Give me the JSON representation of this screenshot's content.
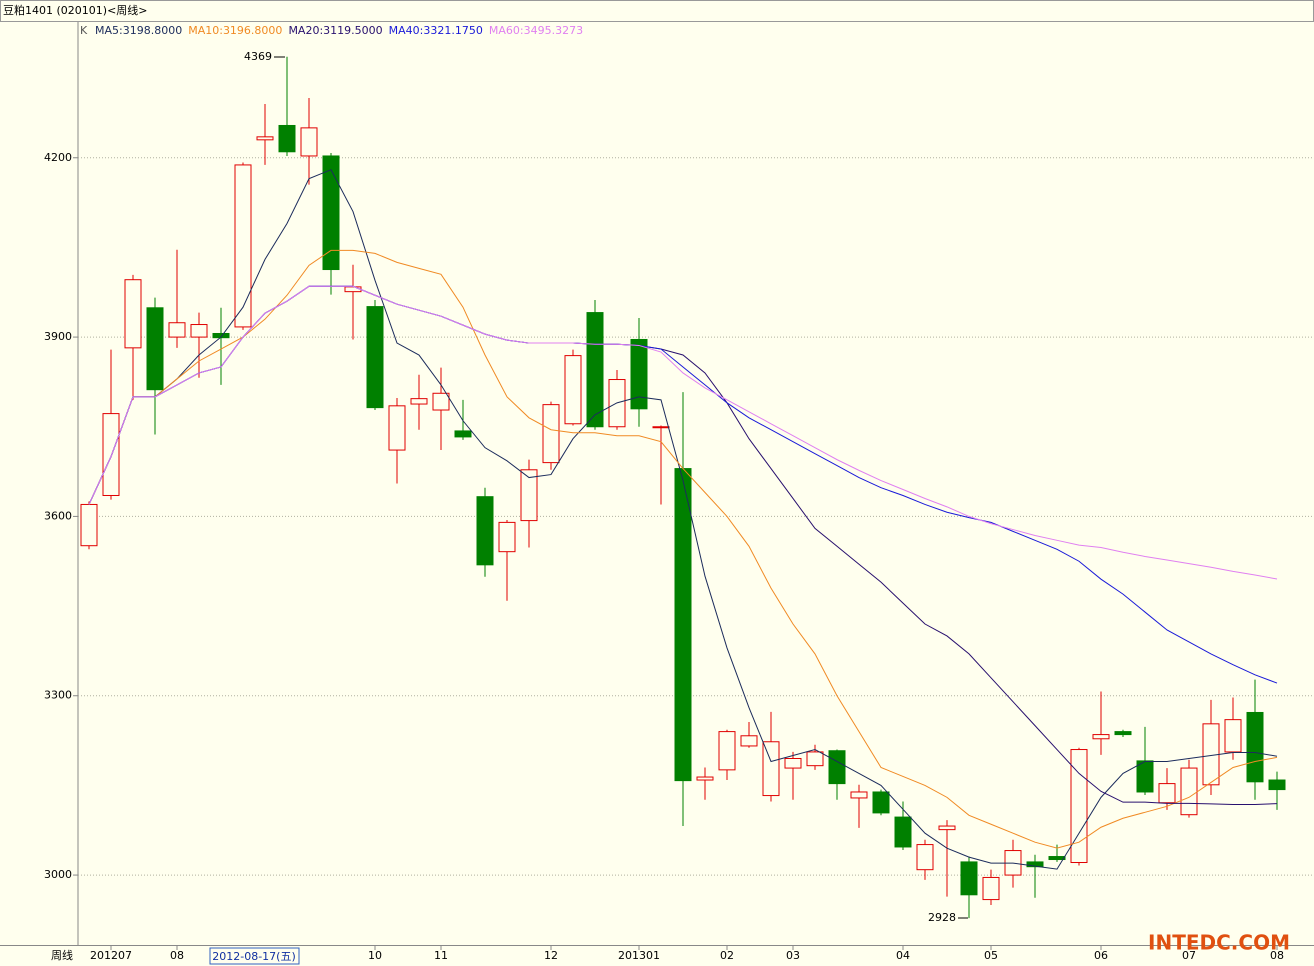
{
  "window_title": "豆粕1401 (020101)<周线>",
  "chart_data": {
    "type": "candlestick",
    "legend_title": "K",
    "x_axis_label": "周线",
    "cursor_label": "2012-08-17(五)",
    "watermark": "INTEDC.COM",
    "annotations": [
      "4369",
      "2928"
    ],
    "categories": [
      null,
      "201207",
      null,
      null,
      "08",
      null,
      null,
      null,
      null,
      null,
      null,
      null,
      null,
      "10",
      null,
      null,
      "11",
      null,
      null,
      null,
      null,
      "12",
      null,
      null,
      null,
      "201301",
      null,
      null,
      null,
      "02",
      null,
      null,
      "03",
      null,
      null,
      null,
      null,
      "04",
      null,
      null,
      null,
      "05",
      null,
      null,
      null,
      null,
      "06",
      null,
      null,
      null,
      "07",
      null,
      null,
      null,
      "08"
    ],
    "open": [
      3551,
      3635,
      3882,
      3949,
      3900,
      3900,
      3906,
      3917,
      4230,
      4254,
      4203,
      4203,
      3976,
      3951,
      3711,
      3788,
      3778,
      3743,
      3633,
      3541,
      3593,
      3690,
      3755,
      3941,
      3750,
      3896,
      3750,
      3680,
      3159,
      3176,
      3216,
      3133,
      3179,
      3183,
      3208,
      3129,
      3139,
      3097,
      3009,
      3076,
      3022,
      2959,
      3000,
      3022,
      3031,
      3021,
      3228,
      3240,
      3191,
      3121,
      3101,
      3151,
      3206,
      3272,
      3159
    ],
    "high": [
      3625,
      3879,
      4004,
      3966,
      4046,
      3941,
      3949,
      4192,
      4290,
      4369,
      4300,
      4208,
      4021,
      3962,
      3798,
      3837,
      3849,
      3795,
      3648,
      3594,
      3695,
      3792,
      3879,
      3962,
      3845,
      3932,
      3752,
      3808,
      3180,
      3243,
      3256,
      3273,
      3206,
      3218,
      3210,
      3151,
      3143,
      3123,
      3059,
      3092,
      3031,
      3009,
      3059,
      3034,
      3051,
      3213,
      3307,
      3243,
      3248,
      3179,
      3193,
      3293,
      3297,
      3327,
      3173
    ],
    "low": [
      3545,
      3628,
      3795,
      3737,
      3882,
      3832,
      3820,
      3912,
      4188,
      4203,
      4155,
      3971,
      3896,
      3778,
      3655,
      3745,
      3711,
      3728,
      3499,
      3459,
      3548,
      3678,
      3752,
      3745,
      3745,
      3750,
      3620,
      3082,
      3126,
      3159,
      3213,
      3123,
      3126,
      3176,
      3126,
      3079,
      3100,
      3042,
      2992,
      2964,
      2928,
      2950,
      2979,
      2962,
      3022,
      3016,
      3201,
      3231,
      3134,
      3109,
      3096,
      3134,
      3193,
      3126,
      3109
    ],
    "close": [
      3620,
      3772,
      3996,
      3812,
      3924,
      3921,
      3899,
      4188,
      4235,
      4210,
      4250,
      4013,
      3984,
      3782,
      3785,
      3797,
      3806,
      3733,
      3519,
      3590,
      3678,
      3787,
      3869,
      3750,
      3829,
      3780,
      3750,
      3158,
      3164,
      3240,
      3233,
      3223,
      3195,
      3206,
      3153,
      3139,
      3104,
      3047,
      3051,
      3082,
      2967,
      2996,
      3041,
      3014,
      3026,
      3210,
      3235,
      3235,
      3139,
      3153,
      3179,
      3253,
      3260,
      3156,
      3143
    ],
    "up_color": "#e00000",
    "down_color": "#008000",
    "series": [
      {
        "name": "MA5:3198.8000",
        "color": "#1c2c5c",
        "values": [
          3620,
          3700,
          3800,
          3800,
          3830,
          3870,
          3900,
          3950,
          4030,
          4090,
          4165,
          4180,
          4110,
          3995,
          3890,
          3870,
          3820,
          3760,
          3715,
          3693,
          3665,
          3670,
          3730,
          3770,
          3790,
          3800,
          3795,
          3660,
          3500,
          3380,
          3280,
          3190,
          3200,
          3210,
          3190,
          3170,
          3150,
          3110,
          3070,
          3045,
          3030,
          3020,
          3020,
          3015,
          3010,
          3070,
          3130,
          3170,
          3190,
          3190,
          3195,
          3200,
          3205,
          3205,
          3198.8
        ]
      },
      {
        "name": "MA10:3196.8000",
        "color": "#f08a24",
        "values": [
          3620,
          3700,
          3800,
          3800,
          3830,
          3860,
          3880,
          3900,
          3930,
          3970,
          4020,
          4045,
          4045,
          4040,
          4025,
          4015,
          4005,
          3950,
          3870,
          3800,
          3765,
          3745,
          3740,
          3740,
          3735,
          3735,
          3725,
          3680,
          3640,
          3600,
          3550,
          3480,
          3420,
          3370,
          3300,
          3240,
          3180,
          3165,
          3150,
          3130,
          3100,
          3085,
          3070,
          3055,
          3045,
          3055,
          3080,
          3095,
          3105,
          3115,
          3130,
          3155,
          3180,
          3190,
          3196.8
        ]
      },
      {
        "name": "MA20:3119.5000",
        "color": "#28106e",
        "values": [
          3620,
          3700,
          3800,
          3800,
          3820,
          3840,
          3850,
          3900,
          3940,
          3960,
          3985,
          3985,
          3985,
          3970,
          3955,
          3945,
          3935,
          3920,
          3905,
          3895,
          3890,
          3890,
          3890,
          3888,
          3888,
          3886,
          3880,
          3870,
          3840,
          3790,
          3730,
          3680,
          3630,
          3580,
          3550,
          3520,
          3490,
          3455,
          3420,
          3400,
          3370,
          3330,
          3290,
          3250,
          3210,
          3170,
          3140,
          3122,
          3122,
          3120,
          3120,
          3119,
          3118,
          3118,
          3119.5
        ]
      },
      {
        "name": "MA40:3321.1750",
        "color": "#1a1ad8",
        "values": [
          3620,
          3700,
          3800,
          3800,
          3820,
          3840,
          3850,
          3900,
          3940,
          3960,
          3985,
          3985,
          3985,
          3970,
          3955,
          3945,
          3935,
          3920,
          3905,
          3895,
          3890,
          3890,
          3890,
          3888,
          3888,
          3886,
          3880,
          3850,
          3820,
          3790,
          3765,
          3745,
          3725,
          3705,
          3685,
          3665,
          3648,
          3635,
          3620,
          3607,
          3598,
          3590,
          3575,
          3560,
          3545,
          3525,
          3495,
          3470,
          3440,
          3410,
          3390,
          3370,
          3352,
          3335,
          3321.175
        ]
      },
      {
        "name": "MA60:3495.3273",
        "color": "#e080f0",
        "values": [
          3620,
          3700,
          3800,
          3800,
          3820,
          3840,
          3850,
          3900,
          3940,
          3960,
          3985,
          3985,
          3985,
          3970,
          3955,
          3945,
          3935,
          3920,
          3905,
          3895,
          3890,
          3890,
          3890,
          3888,
          3888,
          3886,
          3875,
          3840,
          3815,
          3795,
          3775,
          3755,
          3735,
          3715,
          3695,
          3677,
          3660,
          3645,
          3630,
          3616,
          3600,
          3588,
          3578,
          3568,
          3560,
          3552,
          3548,
          3540,
          3533,
          3527,
          3521,
          3515,
          3508,
          3502,
          3495.3273
        ]
      }
    ],
    "ylim": [
      2883,
      4397
    ],
    "yticks": [
      3000,
      3300,
      3600,
      3900,
      4200
    ],
    "grid": true
  }
}
